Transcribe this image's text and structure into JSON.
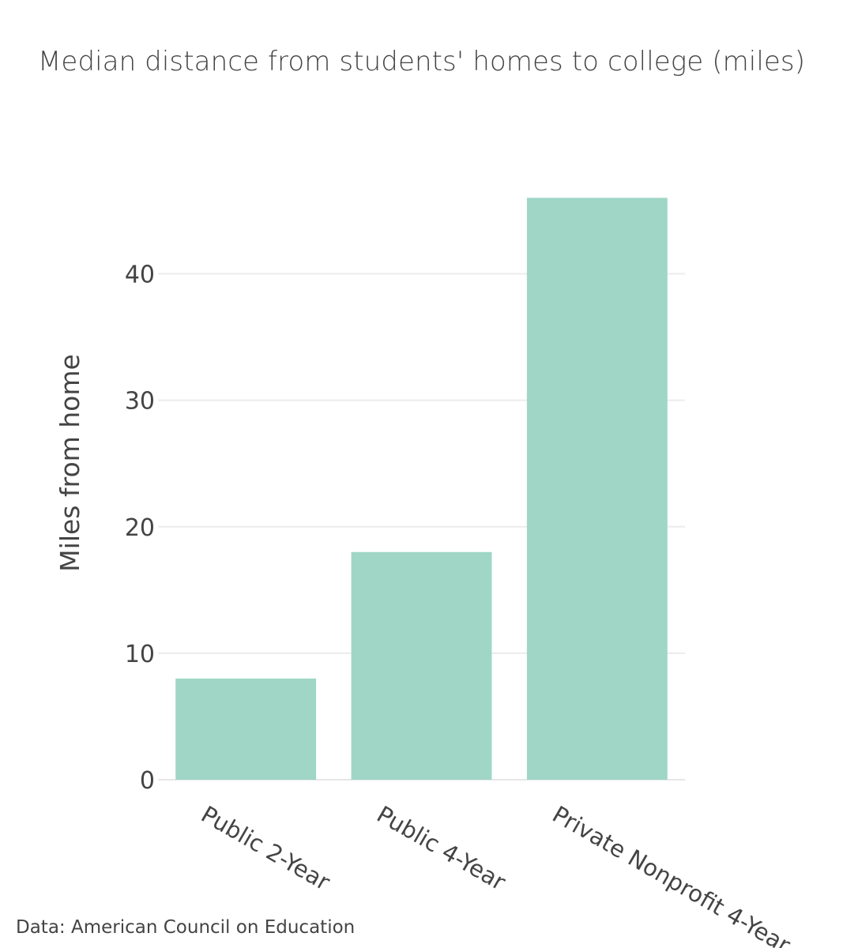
{
  "chart_data": {
    "type": "bar",
    "title": "Median distance from students' homes to college (miles)",
    "ylabel": "Miles from home",
    "xlabel": "",
    "categories": [
      "Public 2-Year",
      "Public 4-Year",
      "Private Nonprofit 4-Year"
    ],
    "values": [
      8,
      18,
      46
    ],
    "ylim": [
      0,
      48.4
    ],
    "yticks": [
      0,
      10,
      20,
      30,
      40
    ],
    "grid": true,
    "bar_color": "#9fd6c6",
    "source": "Data: American Council on Education"
  }
}
